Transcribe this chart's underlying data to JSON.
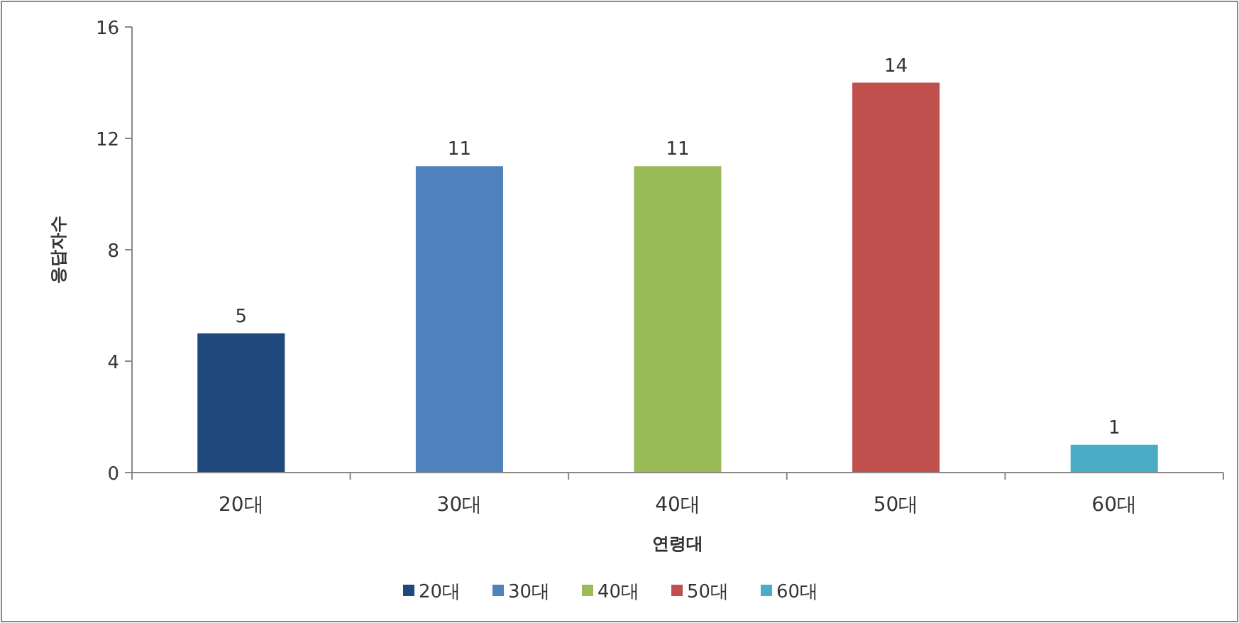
{
  "chart_data": {
    "type": "bar",
    "xlabel": "연령대",
    "ylabel": "응답자수",
    "categories": [
      "20대",
      "30대",
      "40대",
      "50대",
      "60대"
    ],
    "series": [
      {
        "name": "20대",
        "color": "#1f497d",
        "values": [
          5,
          null,
          null,
          null,
          null
        ]
      },
      {
        "name": "30대",
        "color": "#4f81bd",
        "values": [
          null,
          11,
          null,
          null,
          null
        ]
      },
      {
        "name": "40대",
        "color": "#9bbb59",
        "values": [
          null,
          null,
          11,
          null,
          null
        ]
      },
      {
        "name": "50대",
        "color": "#c0504d",
        "values": [
          null,
          null,
          null,
          14,
          null
        ]
      },
      {
        "name": "60대",
        "color": "#4bacc6",
        "values": [
          null,
          null,
          null,
          null,
          1
        ]
      }
    ],
    "ylim": [
      0,
      16
    ],
    "yticks": [
      0,
      4,
      8,
      12,
      16
    ],
    "data_labels": true,
    "legend": "bottom",
    "grid": false
  }
}
